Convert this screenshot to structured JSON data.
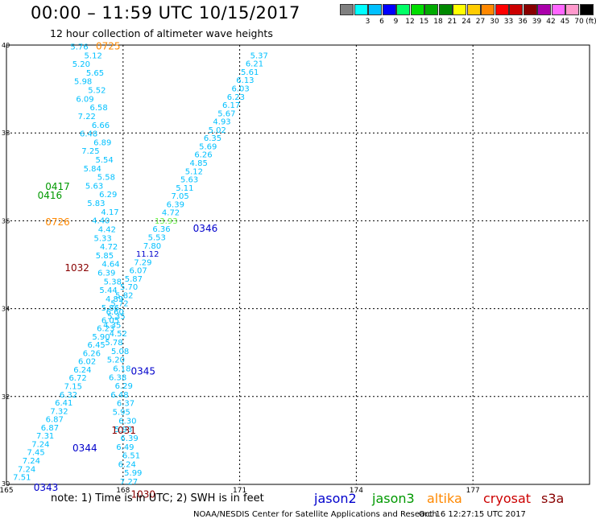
{
  "header": {
    "title": "00:00 – 11:59 UTC 10/15/2017",
    "subtitle": "12 hour collection of altimeter wave heights"
  },
  "colorbar": {
    "unit_label": "(ft)",
    "bins": [
      {
        "label": "",
        "color": "#808080"
      },
      {
        "label": "3",
        "color": "#00ffff"
      },
      {
        "label": "6",
        "color": "#00c0ff"
      },
      {
        "label": "9",
        "color": "#0000ff"
      },
      {
        "label": "12",
        "color": "#00ff66"
      },
      {
        "label": "15",
        "color": "#00dd00"
      },
      {
        "label": "18",
        "color": "#00aa00"
      },
      {
        "label": "21",
        "color": "#008800"
      },
      {
        "label": "24",
        "color": "#ffff00"
      },
      {
        "label": "27",
        "color": "#ffcc00"
      },
      {
        "label": "30",
        "color": "#ff8800"
      },
      {
        "label": "33",
        "color": "#ff0000"
      },
      {
        "label": "36",
        "color": "#cc0000"
      },
      {
        "label": "39",
        "color": "#880000"
      },
      {
        "label": "42",
        "color": "#aa00aa"
      },
      {
        "label": "45",
        "color": "#ff66ff"
      },
      {
        "label": "70",
        "color": "#ff99cc"
      },
      {
        "label": "",
        "color": "#000000"
      }
    ]
  },
  "footer": {
    "note": "note:  1) Time is in UTC;  2) SWH is in feet",
    "satellites": [
      {
        "name": "jason2",
        "color": "#0000cc"
      },
      {
        "name": "jason3",
        "color": "#009900"
      },
      {
        "name": "altika",
        "color": "#ff8800"
      },
      {
        "name": "cryosat",
        "color": "#cc0000"
      },
      {
        "name": "s3a",
        "color": "#880000"
      }
    ],
    "credit": "NOAA/NESDIS Center for Satellite Applications and Research",
    "timestamp": "Oct 16 12:27:15 UTC 2017"
  },
  "chart_data": {
    "type": "scatter",
    "xlim": [
      165,
      180
    ],
    "ylim": [
      30,
      40
    ],
    "x_ticks": [
      "165",
      "168",
      "171",
      "174",
      "177"
    ],
    "y_ticks": [
      "30",
      "32",
      "34",
      "36",
      "38",
      "40"
    ],
    "grid": true,
    "tracks": [
      {
        "name": "descending track (ending 0725 / 1030)",
        "color": "#00c0ff",
        "start": [
          167.0,
          39.9
        ],
        "end": [
          168.2,
          30.0
        ],
        "values": [
          "5.76",
          "5.12",
          "5.20",
          "5.65",
          "5.98",
          "5.52",
          "6.09",
          "6.58",
          "7.22",
          "6.66",
          "6.48",
          "6.89",
          "7.25",
          "5.54",
          "5.84",
          "5.58",
          "5.63",
          "6.29",
          "5.83",
          "4.17",
          "4.40",
          "4.42",
          "5.33",
          "4.72",
          "5.85",
          "4.64",
          "6.39",
          "5.38",
          "5.44",
          "4.89",
          "5.86",
          "5.35",
          "4.35",
          "4.52",
          "5.78",
          "5.08",
          "5.20",
          "6.18",
          "6.38",
          "6.29",
          "6.48",
          "6.37",
          "5.95",
          "6.30",
          "5.93",
          "6.39",
          "6.49",
          "6.51",
          "6.24",
          "5.99",
          "7.27"
        ]
      },
      {
        "name": "ascending track (0343 - 0346)",
        "color": "#00c0ff",
        "start": [
          165.4,
          30.1
        ],
        "end": [
          171.5,
          39.7
        ],
        "values": [
          "7.51",
          "7.24",
          "7.24",
          "7.45",
          "7.24",
          "7.31",
          "6.87",
          "6.87",
          "7.32",
          "6.41",
          "6.32",
          "7.15",
          "6.72",
          "6.24",
          "6.02",
          "6.26",
          "6.45",
          "5.90",
          "6.23",
          "6.05",
          "6.60",
          "5.72",
          "5.82",
          "5.70",
          "5.87",
          "6.07",
          "7.29",
          "11.12",
          "7.80",
          "5.53",
          "6.36",
          "13.93",
          "4.72",
          "6.39",
          "7.05",
          "5.11",
          "5.63",
          "5.12",
          "4.85",
          "6.26",
          "5.69",
          "6.35",
          "5.02",
          "4.93",
          "5.67",
          "6.17",
          "6.23",
          "6.03",
          "6.13",
          "5.61",
          "6.21",
          "5.37"
        ]
      }
    ],
    "time_labels": [
      {
        "text": "0725",
        "satellite": "altika",
        "x": 167.3,
        "y": 39.9
      },
      {
        "text": "0417",
        "satellite": "jason3",
        "x": 166.0,
        "y": 36.7
      },
      {
        "text": "0416",
        "satellite": "jason3",
        "x": 165.8,
        "y": 36.5
      },
      {
        "text": "0726",
        "satellite": "altika",
        "x": 166.0,
        "y": 35.9
      },
      {
        "text": "1032",
        "satellite": "s3a",
        "x": 166.5,
        "y": 34.85
      },
      {
        "text": "0346",
        "satellite": "jason2",
        "x": 169.8,
        "y": 35.75
      },
      {
        "text": "0345",
        "satellite": "jason2",
        "x": 168.2,
        "y": 32.5
      },
      {
        "text": "1031",
        "satellite": "s3a",
        "x": 167.7,
        "y": 31.15
      },
      {
        "text": "0344",
        "satellite": "jason2",
        "x": 166.7,
        "y": 30.75
      },
      {
        "text": "0343",
        "satellite": "jason2",
        "x": 165.7,
        "y": 29.85
      },
      {
        "text": "1030",
        "satellite": "s3a",
        "x": 168.2,
        "y": 29.7
      }
    ]
  }
}
